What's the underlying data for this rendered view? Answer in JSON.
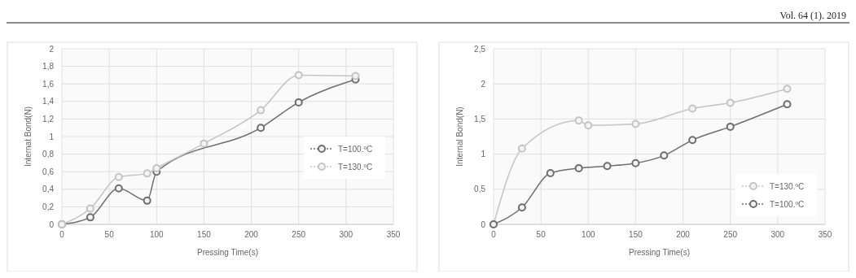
{
  "chart_data": [
    {
      "type": "line",
      "xlabel": "Pressing Time(s)",
      "ylabel": "Internat Bond(N)",
      "xlim": [
        0,
        350
      ],
      "xticks": [
        0,
        50,
        100,
        150,
        200,
        250,
        300,
        350
      ],
      "ylim": [
        0,
        2
      ],
      "yticks": [
        0,
        {
          "value": 0.2,
          "label": "0,2"
        },
        {
          "value": 0.4,
          "label": "0,4"
        },
        {
          "value": 0.6,
          "label": "0,6"
        },
        {
          "value": 0.8,
          "label": "0,8"
        },
        1,
        {
          "value": 1.2,
          "label": "1,2"
        },
        {
          "value": 1.4,
          "label": "1,4"
        },
        {
          "value": 1.6,
          "label": "1,6"
        },
        {
          "value": 1.8,
          "label": "1,8"
        },
        2
      ],
      "grid": true,
      "legend": "right",
      "marker": "circle",
      "series": [
        {
          "name": "T=100.ºC",
          "color": "#6e6e6e",
          "x": [
            0,
            30,
            60,
            90,
            100,
            210,
            250,
            310
          ],
          "values": [
            0,
            0.08,
            0.41,
            0.27,
            0.6,
            1.1,
            1.39,
            1.65
          ]
        },
        {
          "name": "T=130.ºC",
          "color": "#c4c4c4",
          "x": [
            0,
            30,
            60,
            90,
            100,
            150,
            210,
            250,
            310
          ],
          "values": [
            0,
            0.18,
            0.54,
            0.58,
            0.64,
            0.92,
            1.3,
            1.7,
            1.69
          ]
        }
      ]
    },
    {
      "type": "line",
      "xlabel": "Pressing Time(s)",
      "ylabel": "Internal Bond(N)",
      "annotations": [
        "Vol. 64 (1). 2019"
      ],
      "xlim": [
        0,
        350
      ],
      "xticks": [
        0,
        50,
        100,
        150,
        200,
        250,
        300,
        350
      ],
      "ylim": [
        0,
        2.5
      ],
      "yticks": [
        0,
        {
          "value": 0.5,
          "label": "0,5"
        },
        1,
        {
          "value": 1.5,
          "label": "1,5"
        },
        2,
        {
          "value": 2.5,
          "label": "2,5"
        }
      ],
      "grid": true,
      "legend": "bottom right",
      "marker": "circle",
      "series": [
        {
          "name": "T=130.ºC",
          "color": "#c4c4c4",
          "x": [
            0,
            30,
            90,
            100,
            150,
            210,
            250,
            310
          ],
          "values": [
            0,
            1.08,
            1.48,
            1.41,
            1.43,
            1.65,
            1.73,
            1.93
          ]
        },
        {
          "name": "T=100.ºC",
          "color": "#6e6e6e",
          "x": [
            0,
            30,
            60,
            90,
            120,
            150,
            180,
            210,
            250,
            310
          ],
          "values": [
            0,
            0.24,
            0.73,
            0.8,
            0.83,
            0.87,
            0.98,
            1.2,
            1.39,
            1.71
          ]
        }
      ]
    }
  ]
}
